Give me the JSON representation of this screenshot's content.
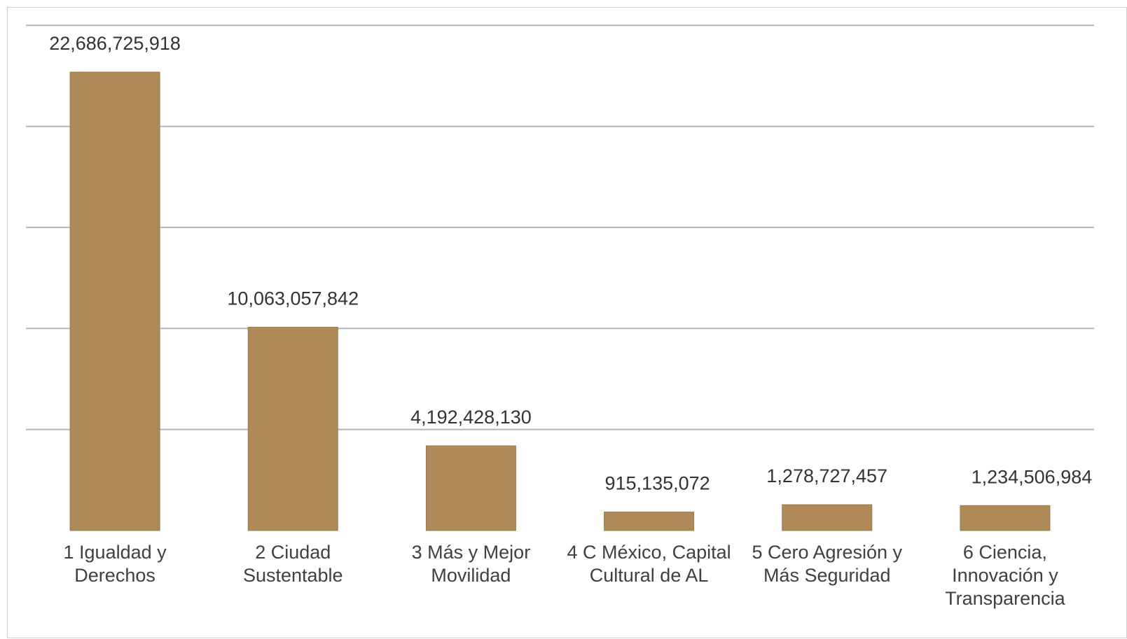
{
  "chart_data": {
    "type": "bar",
    "title": "",
    "xlabel": "",
    "ylabel": "",
    "categories": [
      [
        "1 Igualdad y",
        "Derechos"
      ],
      [
        "2 Ciudad",
        "Sustentable"
      ],
      [
        "3 Más y Mejor",
        "Movilidad"
      ],
      [
        "4 C México, Capital",
        "Cultural de AL"
      ],
      [
        "5 Cero Agresión y",
        "Más Seguridad"
      ],
      [
        "6 Ciencia,",
        "Innovación y",
        "Transparencia"
      ]
    ],
    "values": [
      22686725918,
      10063057842,
      4192428130,
      915135072,
      1278727457,
      1234506984
    ],
    "value_labels": [
      "22,686,725,918",
      "10,063,057,842",
      "4,192,428,130",
      "915,135,072",
      "1,278,727,457",
      "1,234,506,984"
    ],
    "ylim": [
      0,
      25000000000
    ],
    "grid": true,
    "y_tick_labels_shown": false,
    "legend": "none",
    "colors": {
      "bar": "#b08a56",
      "grid": "#b5b5b5",
      "text": "#333333"
    }
  }
}
